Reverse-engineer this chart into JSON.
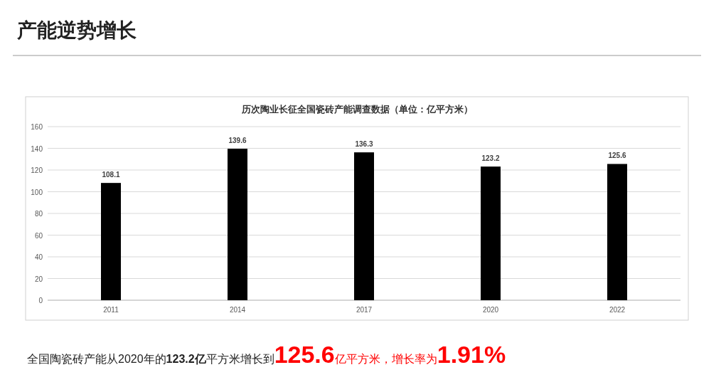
{
  "chart_data": {
    "type": "bar",
    "title": "产能逆势增长",
    "subtitle": "历次陶业长征全国瓷砖产能调查数据（单位：亿平方米）",
    "categories": [
      "2011",
      "2014",
      "2017",
      "2020",
      "2022"
    ],
    "values": [
      108.1,
      139.6,
      136.3,
      123.2,
      125.6
    ],
    "color": "#000000",
    "ylim": [
      0,
      160
    ],
    "yticks": [
      0,
      20,
      40,
      60,
      80,
      100,
      120,
      140,
      160
    ],
    "grid": "y",
    "data_labels": true,
    "annotations": [
      "全国陶瓷砖产能从2020年的",
      "123.2亿",
      "平方米增长到",
      "125.6",
      "亿平方米，增长率为",
      "1.91%"
    ]
  }
}
